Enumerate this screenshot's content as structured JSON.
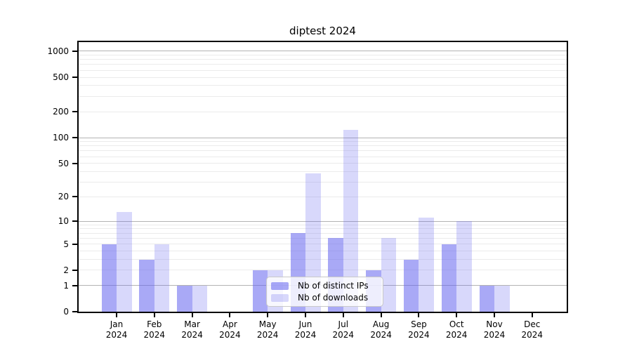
{
  "chart_data": {
    "type": "bar",
    "title": "diptest 2024",
    "scale": "log1p",
    "categories": [
      "Jan",
      "Feb",
      "Mar",
      "Apr",
      "May",
      "Jun",
      "Jul",
      "Aug",
      "Sep",
      "Oct",
      "Nov",
      "Dec"
    ],
    "year": "2024",
    "series": [
      {
        "name": "Nb of distinct IPs",
        "color": "rgba(99,99,238,0.55)",
        "values": [
          5,
          3,
          1,
          0,
          2,
          7,
          6,
          2,
          3,
          5,
          1,
          0
        ]
      },
      {
        "name": "Nb of downloads",
        "color": "rgba(99,99,238,0.25)",
        "values": [
          13,
          5,
          1,
          0,
          2,
          38,
          122,
          6,
          11,
          10,
          1,
          0
        ]
      }
    ],
    "xlabel": "",
    "ylabel": "",
    "y_ticks": [
      0,
      1,
      2,
      5,
      10,
      20,
      50,
      100,
      200,
      500,
      1000
    ],
    "ylim": [
      0,
      1270
    ],
    "grid": "on",
    "gridlines_major": [
      1,
      10,
      100,
      1000
    ],
    "gridlines_minor": [
      2,
      3,
      4,
      5,
      6,
      7,
      8,
      9,
      20,
      30,
      40,
      50,
      60,
      70,
      80,
      90,
      200,
      300,
      400,
      500,
      600,
      700,
      800,
      900
    ],
    "grid_major_color": "#b3b3b3",
    "grid_minor_color": "#ebebeb",
    "legend_position": "lower center"
  },
  "legend": {
    "items": [
      {
        "label": "Nb of distinct IPs",
        "color": "rgba(99,99,238,0.55)"
      },
      {
        "label": "Nb of downloads",
        "color": "rgba(99,99,238,0.25)"
      }
    ]
  }
}
